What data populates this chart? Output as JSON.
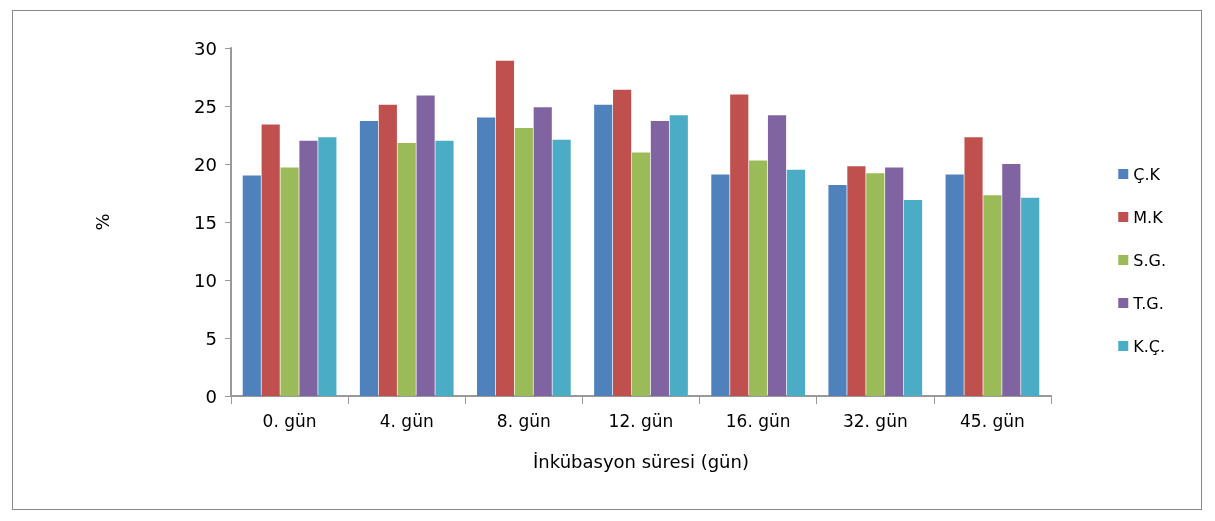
{
  "chart_data": {
    "type": "bar",
    "xlabel": "İnkübasyon süresi (gün)",
    "ylabel": "%",
    "categories": [
      "0. gün",
      "4. gün",
      "8. gün",
      "12. gün",
      "16. gün",
      "32. gün",
      "45. gün"
    ],
    "series": [
      {
        "name": "Ç.K",
        "color": "#4f81bd",
        "values": [
          19.0,
          23.7,
          24.0,
          25.1,
          19.1,
          18.2,
          19.1
        ]
      },
      {
        "name": "M.K",
        "color": "#c0504d",
        "values": [
          23.4,
          25.1,
          28.9,
          26.4,
          26.0,
          19.8,
          22.3
        ]
      },
      {
        "name": "S.G.",
        "color": "#9bbb59",
        "values": [
          19.7,
          21.8,
          23.1,
          21.0,
          20.3,
          19.2,
          17.3
        ]
      },
      {
        "name": "T.G.",
        "color": "#8064a2",
        "values": [
          22.0,
          25.9,
          24.9,
          23.7,
          24.2,
          19.7,
          20.0
        ]
      },
      {
        "name": "K.Ç.",
        "color": "#4bacc6",
        "values": [
          22.3,
          22.0,
          22.1,
          24.2,
          19.5,
          16.9,
          17.1
        ]
      }
    ],
    "ylim": [
      0,
      30
    ],
    "yticks": [
      0,
      5,
      10,
      15,
      20,
      25,
      30
    ],
    "grid": false,
    "legend": "right"
  }
}
